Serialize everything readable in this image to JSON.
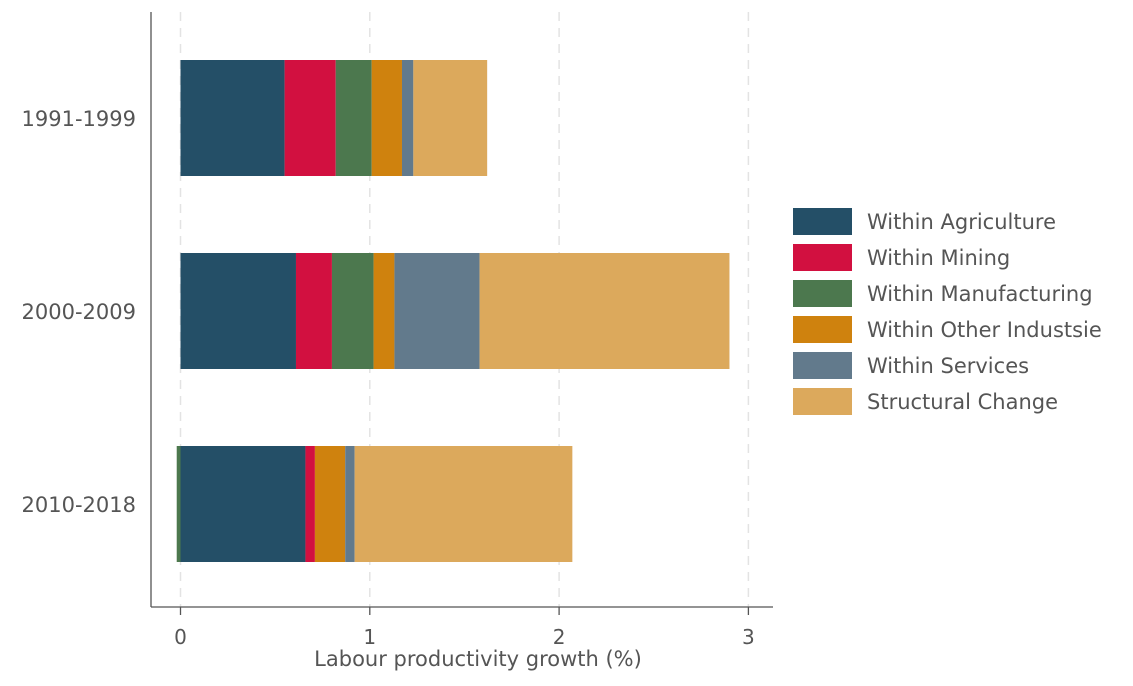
{
  "chart_data": {
    "type": "bar",
    "orientation": "horizontal",
    "stacked": true,
    "title": "",
    "xlabel": "Labour productivity growth (%)",
    "ylabel": "",
    "xlim": [
      -0.15,
      3.15
    ],
    "xticks": [
      0,
      1,
      2,
      3
    ],
    "grid": true,
    "legend_position": "right",
    "categories": [
      "1991-1999",
      "2000-2009",
      "2010-2018"
    ],
    "series": [
      {
        "name": "Within Agriculture",
        "color": "#244f67",
        "values": [
          0.55,
          0.61,
          0.66
        ]
      },
      {
        "name": "Within Mining",
        "color": "#d21040",
        "values": [
          0.27,
          0.19,
          0.05
        ]
      },
      {
        "name": "Within Manufacturing",
        "color": "#4c784e",
        "values": [
          0.19,
          0.22,
          -0.02
        ]
      },
      {
        "name": "Within Other Industsie",
        "color": "#cf820e",
        "values": [
          0.16,
          0.11,
          0.16
        ]
      },
      {
        "name": "Within Services",
        "color": "#627a8c",
        "values": [
          0.06,
          0.45,
          0.05
        ]
      },
      {
        "name": "Structural Change",
        "color": "#dca95c",
        "values": [
          0.39,
          1.32,
          1.15
        ]
      }
    ]
  }
}
